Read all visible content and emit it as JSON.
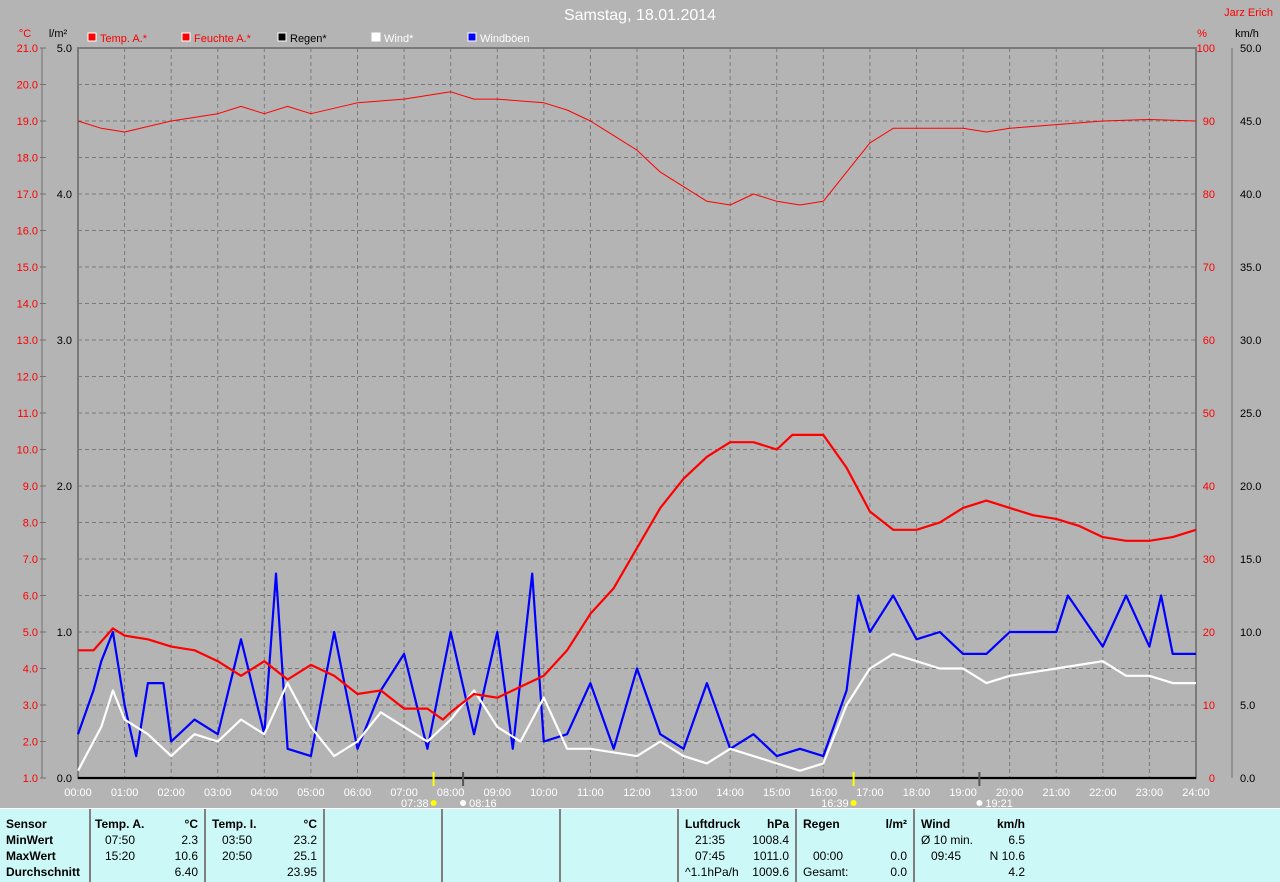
{
  "title": "Samstag, 18.01.2014",
  "author": "Jarz Erich",
  "axes": {
    "temp_unit": "°C",
    "rain_unit": "l/m²",
    "hum_unit": "%",
    "wind_unit": "km/h"
  },
  "legend": [
    {
      "label": "Temp. A.*",
      "color": "#ff0000",
      "text_color": "#ff0000"
    },
    {
      "label": "Feuchte A.*",
      "color": "#ff0000",
      "text_color": "#ff0000"
    },
    {
      "label": "Regen*",
      "color": "#000000",
      "text_color": "#000000"
    },
    {
      "label": "Wind*",
      "color": "#ffffff",
      "text_color": "#ffffff"
    },
    {
      "label": "Windböen",
      "color": "#0000ff",
      "text_color": "#ffffff"
    }
  ],
  "sun_markers": [
    {
      "time": "07:38",
      "label": "07:38"
    },
    {
      "time": "08:16",
      "label": "08:16"
    },
    {
      "time": "16:39",
      "label": "16:39"
    },
    {
      "time": "19:21",
      "label": "19:21"
    }
  ],
  "chart_data": {
    "type": "line",
    "title": "Samstag, 18.01.2014",
    "x_ticks": [
      "00:00",
      "01:00",
      "02:00",
      "03:00",
      "04:00",
      "05:00",
      "06:00",
      "07:00",
      "08:00",
      "09:00",
      "10:00",
      "11:00",
      "12:00",
      "13:00",
      "14:00",
      "15:00",
      "16:00",
      "17:00",
      "18:00",
      "19:00",
      "20:00",
      "21:00",
      "22:00",
      "23:00",
      "24:00"
    ],
    "y_axes": {
      "temp": {
        "unit": "°C",
        "range": [
          1,
          21
        ],
        "step": 1
      },
      "rain": {
        "unit": "l/m²",
        "range": [
          0,
          5
        ],
        "step": 1
      },
      "humidity": {
        "unit": "%",
        "range": [
          0,
          100
        ],
        "step": 10
      },
      "wind": {
        "unit": "km/h",
        "range": [
          0,
          50
        ],
        "step": 5
      }
    },
    "grid": true,
    "series": [
      {
        "name": "Temp. A.*",
        "axis": "temp",
        "color": "#ff0000",
        "points": [
          [
            "00:00",
            4.5
          ],
          [
            "00:20",
            4.5
          ],
          [
            "00:45",
            5.1
          ],
          [
            "01:00",
            4.9
          ],
          [
            "01:30",
            4.8
          ],
          [
            "02:00",
            4.6
          ],
          [
            "02:30",
            4.5
          ],
          [
            "03:00",
            4.2
          ],
          [
            "03:30",
            3.8
          ],
          [
            "04:00",
            4.2
          ],
          [
            "04:30",
            3.7
          ],
          [
            "05:00",
            4.1
          ],
          [
            "05:30",
            3.8
          ],
          [
            "06:00",
            3.3
          ],
          [
            "06:30",
            3.4
          ],
          [
            "07:00",
            2.9
          ],
          [
            "07:30",
            2.9
          ],
          [
            "07:50",
            2.6
          ],
          [
            "08:00",
            2.8
          ],
          [
            "08:30",
            3.3
          ],
          [
            "09:00",
            3.2
          ],
          [
            "09:30",
            3.5
          ],
          [
            "10:00",
            3.8
          ],
          [
            "10:30",
            4.5
          ],
          [
            "11:00",
            5.5
          ],
          [
            "11:30",
            6.2
          ],
          [
            "12:00",
            7.3
          ],
          [
            "12:30",
            8.4
          ],
          [
            "13:00",
            9.2
          ],
          [
            "13:30",
            9.8
          ],
          [
            "14:00",
            10.2
          ],
          [
            "14:30",
            10.2
          ],
          [
            "15:00",
            10.0
          ],
          [
            "15:20",
            10.4
          ],
          [
            "16:00",
            10.4
          ],
          [
            "16:30",
            9.5
          ],
          [
            "17:00",
            8.3
          ],
          [
            "17:30",
            7.8
          ],
          [
            "18:00",
            7.8
          ],
          [
            "18:30",
            8.0
          ],
          [
            "19:00",
            8.4
          ],
          [
            "19:30",
            8.6
          ],
          [
            "20:00",
            8.4
          ],
          [
            "20:30",
            8.2
          ],
          [
            "21:00",
            8.1
          ],
          [
            "21:30",
            7.9
          ],
          [
            "22:00",
            7.6
          ],
          [
            "22:30",
            7.5
          ],
          [
            "23:00",
            7.5
          ],
          [
            "23:30",
            7.6
          ],
          [
            "24:00",
            7.8
          ]
        ]
      },
      {
        "name": "Feuchte A.*",
        "axis": "humidity",
        "color": "#ff0000",
        "points": [
          [
            "00:00",
            90
          ],
          [
            "00:30",
            89
          ],
          [
            "01:00",
            88.5
          ],
          [
            "02:00",
            90
          ],
          [
            "03:00",
            91
          ],
          [
            "03:30",
            92
          ],
          [
            "04:00",
            91
          ],
          [
            "04:30",
            92
          ],
          [
            "05:00",
            91
          ],
          [
            "06:00",
            92.5
          ],
          [
            "07:00",
            93
          ],
          [
            "08:00",
            94
          ],
          [
            "08:30",
            93
          ],
          [
            "09:00",
            93
          ],
          [
            "10:00",
            92.5
          ],
          [
            "10:30",
            91.5
          ],
          [
            "11:00",
            90
          ],
          [
            "11:30",
            88
          ],
          [
            "12:00",
            86
          ],
          [
            "12:30",
            83
          ],
          [
            "13:00",
            81
          ],
          [
            "13:30",
            79
          ],
          [
            "14:00",
            78.5
          ],
          [
            "14:30",
            80
          ],
          [
            "15:00",
            79
          ],
          [
            "15:30",
            78.5
          ],
          [
            "16:00",
            79
          ],
          [
            "16:30",
            83
          ],
          [
            "17:00",
            87
          ],
          [
            "17:30",
            89
          ],
          [
            "18:00",
            89
          ],
          [
            "19:00",
            89
          ],
          [
            "19:30",
            88.5
          ],
          [
            "20:00",
            89
          ],
          [
            "21:00",
            89.5
          ],
          [
            "22:00",
            90
          ],
          [
            "23:00",
            90.2
          ],
          [
            "24:00",
            90
          ]
        ]
      },
      {
        "name": "Regen*",
        "axis": "rain",
        "color": "#000000",
        "points": [
          [
            "00:00",
            0
          ],
          [
            "24:00",
            0
          ]
        ]
      },
      {
        "name": "Wind*",
        "axis": "wind",
        "color": "#ffffff",
        "points": [
          [
            "00:00",
            0.5
          ],
          [
            "00:30",
            3.5
          ],
          [
            "00:45",
            6
          ],
          [
            "01:00",
            4
          ],
          [
            "01:30",
            3
          ],
          [
            "02:00",
            1.5
          ],
          [
            "02:30",
            3
          ],
          [
            "03:00",
            2.5
          ],
          [
            "03:30",
            4
          ],
          [
            "04:00",
            3
          ],
          [
            "04:30",
            6.5
          ],
          [
            "05:00",
            3.5
          ],
          [
            "05:30",
            1.5
          ],
          [
            "06:00",
            2.5
          ],
          [
            "06:30",
            4.5
          ],
          [
            "07:00",
            3.5
          ],
          [
            "07:30",
            2.5
          ],
          [
            "08:00",
            4
          ],
          [
            "08:30",
            6
          ],
          [
            "09:00",
            3.5
          ],
          [
            "09:30",
            2.5
          ],
          [
            "10:00",
            5.5
          ],
          [
            "10:30",
            2
          ],
          [
            "11:00",
            2
          ],
          [
            "12:00",
            1.5
          ],
          [
            "12:30",
            2.5
          ],
          [
            "13:00",
            1.5
          ],
          [
            "13:30",
            1
          ],
          [
            "14:00",
            2
          ],
          [
            "15:00",
            1
          ],
          [
            "15:30",
            0.5
          ],
          [
            "16:00",
            1
          ],
          [
            "16:30",
            5
          ],
          [
            "17:00",
            7.5
          ],
          [
            "17:30",
            8.5
          ],
          [
            "18:00",
            8
          ],
          [
            "18:30",
            7.5
          ],
          [
            "19:00",
            7.5
          ],
          [
            "19:30",
            6.5
          ],
          [
            "20:00",
            7
          ],
          [
            "21:00",
            7.5
          ],
          [
            "22:00",
            8
          ],
          [
            "22:30",
            7
          ],
          [
            "23:00",
            7
          ],
          [
            "23:30",
            6.5
          ],
          [
            "24:00",
            6.5
          ]
        ]
      },
      {
        "name": "Windböen",
        "axis": "wind",
        "color": "#0000ff",
        "points": [
          [
            "00:00",
            3
          ],
          [
            "00:20",
            6
          ],
          [
            "00:30",
            8
          ],
          [
            "00:45",
            10
          ],
          [
            "01:00",
            5
          ],
          [
            "01:15",
            1.5
          ],
          [
            "01:30",
            6.5
          ],
          [
            "01:50",
            6.5
          ],
          [
            "02:00",
            2.5
          ],
          [
            "02:30",
            4
          ],
          [
            "03:00",
            3
          ],
          [
            "03:30",
            9.5
          ],
          [
            "04:00",
            3
          ],
          [
            "04:15",
            14
          ],
          [
            "04:30",
            2
          ],
          [
            "05:00",
            1.5
          ],
          [
            "05:30",
            10
          ],
          [
            "06:00",
            2
          ],
          [
            "06:30",
            6
          ],
          [
            "07:00",
            8.5
          ],
          [
            "07:30",
            2
          ],
          [
            "08:00",
            10
          ],
          [
            "08:30",
            3
          ],
          [
            "09:00",
            10
          ],
          [
            "09:20",
            2
          ],
          [
            "09:45",
            14
          ],
          [
            "10:00",
            2.5
          ],
          [
            "10:30",
            3
          ],
          [
            "11:00",
            6.5
          ],
          [
            "11:30",
            2
          ],
          [
            "12:00",
            7.5
          ],
          [
            "12:30",
            3
          ],
          [
            "13:00",
            2
          ],
          [
            "13:30",
            6.5
          ],
          [
            "14:00",
            2
          ],
          [
            "14:30",
            3
          ],
          [
            "15:00",
            1.5
          ],
          [
            "15:30",
            2
          ],
          [
            "16:00",
            1.5
          ],
          [
            "16:30",
            6
          ],
          [
            "16:45",
            12.5
          ],
          [
            "17:00",
            10
          ],
          [
            "17:30",
            12.5
          ],
          [
            "18:00",
            9.5
          ],
          [
            "18:30",
            10
          ],
          [
            "19:00",
            8.5
          ],
          [
            "19:30",
            8.5
          ],
          [
            "20:00",
            10
          ],
          [
            "21:00",
            10
          ],
          [
            "21:15",
            12.5
          ],
          [
            "22:00",
            9
          ],
          [
            "22:30",
            12.5
          ],
          [
            "23:00",
            9
          ],
          [
            "23:15",
            12.5
          ],
          [
            "23:30",
            8.5
          ],
          [
            "24:00",
            8.5
          ]
        ]
      }
    ]
  },
  "table": {
    "sensor": {
      "header": "Sensor",
      "rows": [
        "MinWert",
        "MaxWert",
        "Durchschnitt"
      ]
    },
    "temp_a": {
      "header": "Temp. A.",
      "unit": "°C",
      "rows": [
        [
          "07:50",
          "2.3"
        ],
        [
          "15:20",
          "10.6"
        ],
        [
          "",
          "6.40"
        ]
      ]
    },
    "temp_i": {
      "header": "Temp. I.",
      "unit": "°C",
      "rows": [
        [
          "03:50",
          "23.2"
        ],
        [
          "20:50",
          "25.1"
        ],
        [
          "",
          "23.95"
        ]
      ]
    },
    "luftdruck": {
      "header": "Luftdruck",
      "unit": "hPa",
      "rows": [
        [
          "21:35",
          "1008.4"
        ],
        [
          "07:45",
          "1011.0"
        ],
        [
          "^1.1hPa/h",
          "1009.6"
        ]
      ]
    },
    "regen": {
      "header": "Regen",
      "unit": "l/m²",
      "rows": [
        [
          "",
          ""
        ],
        [
          "00:00",
          "0.0"
        ],
        [
          "Gesamt:",
          "0.0"
        ]
      ]
    },
    "wind": {
      "header": "Wind",
      "unit": "km/h",
      "rows": [
        [
          "Ø 10 min.",
          "6.5"
        ],
        [
          "09:45",
          "N 10.6"
        ],
        [
          "",
          "4.2"
        ]
      ]
    }
  }
}
